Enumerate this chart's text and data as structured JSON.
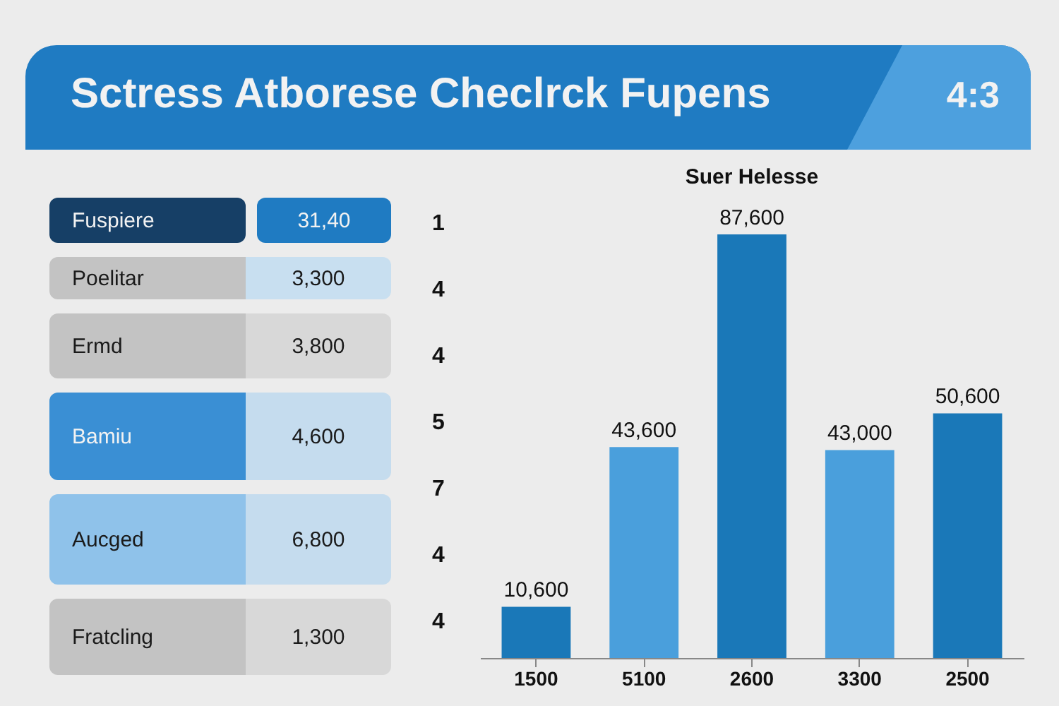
{
  "chart_data": [
    {
      "type": "other",
      "title": "Sctress Atborese Checlrck Fupens",
      "annotations": [
        "4:3",
        "Fuspiere",
        "31,40",
        "Poelitar",
        "3,300",
        "Ermd",
        "3,800",
        "Bamiu",
        "4,600",
        "Aucged",
        "6,800",
        "Fratcling",
        "1,300"
      ]
    },
    {
      "type": "bar",
      "title": "Suer Helesse",
      "categories": [
        "1500",
        "5100",
        "2600",
        "3300",
        "2500"
      ],
      "values": [
        10600,
        43600,
        87600,
        43000,
        50600
      ],
      "colors": [
        "#1a78b8",
        "#4a9fdc",
        "#1a78b8",
        "#4a9fdc",
        "#1a78b8"
      ],
      "value_labels": [
        "10,600",
        "43,600",
        "87,600",
        "43,000",
        "50,600"
      ],
      "annotations": [
        "1",
        "4",
        "4",
        "5",
        "7",
        "4",
        "4"
      ]
    }
  ]
}
